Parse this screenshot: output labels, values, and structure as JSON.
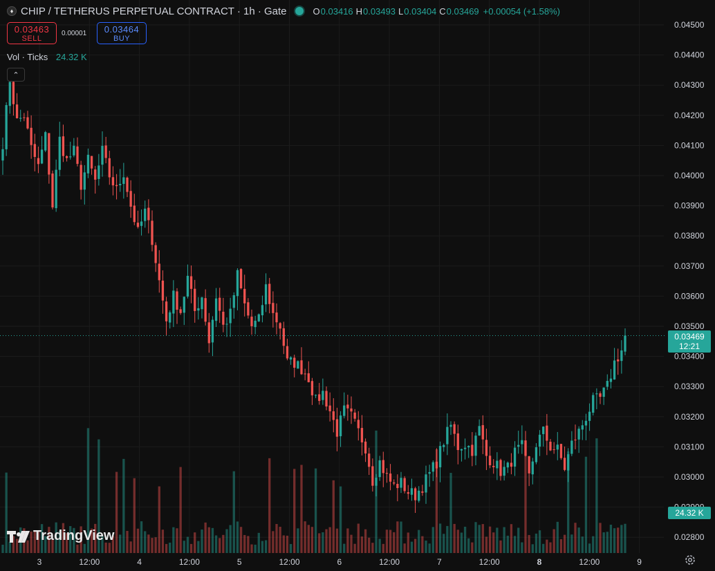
{
  "header": {
    "symbol_title": "CHIP / TETHERUS PERPETUAL CONTRACT · 1h · Gate",
    "icon": "chip-coin-icon",
    "status": "market-open-dot",
    "ohlc": {
      "o_label": "O",
      "o": "0.03416",
      "h_label": "H",
      "h": "0.03493",
      "l_label": "L",
      "l": "0.03404",
      "c_label": "C",
      "c": "0.03469",
      "change": "+0.00054 (+1.58%)"
    }
  },
  "trade": {
    "sell_price": "0.03463",
    "sell_label": "SELL",
    "spread": "0.00001",
    "buy_price": "0.03464",
    "buy_label": "BUY"
  },
  "volume_indicator": {
    "label": "Vol · Ticks",
    "value": "24.32 K"
  },
  "price_tags": {
    "last": "0.03469",
    "countdown": "12:21",
    "volume": "24.32 K"
  },
  "watermark": "TradingView",
  "colors": {
    "up": "#26a69a",
    "down": "#ef5350",
    "background": "#0f0f0f",
    "grid": "#1c1c1c"
  },
  "chart_data": {
    "type": "candlestick",
    "interval": "1h",
    "x_tick_labels": [
      "3",
      "12:00",
      "4",
      "12:00",
      "5",
      "12:00",
      "6",
      "12:00",
      "7",
      "12:00",
      "8",
      "12:00",
      "9"
    ],
    "y_tick_labels": [
      "0.04500",
      "0.04400",
      "0.04300",
      "0.04200",
      "0.04100",
      "0.04000",
      "0.03900",
      "0.03800",
      "0.03700",
      "0.03600",
      "0.03500",
      "0.03400",
      "0.03300",
      "0.03200",
      "0.03100",
      "0.03000",
      "0.02900",
      "0.02800"
    ],
    "ylim": [
      0.0276,
      0.0454
    ],
    "grid": true,
    "last_price": 0.03469,
    "close_path": [
      [
        0,
        0.0411
      ],
      [
        2,
        0.0432
      ],
      [
        4,
        0.0418
      ],
      [
        6,
        0.042
      ],
      [
        8,
        0.0409
      ],
      [
        10,
        0.0403
      ],
      [
        12,
        0.0413
      ],
      [
        14,
        0.039
      ],
      [
        16,
        0.0412
      ],
      [
        18,
        0.0405
      ],
      [
        20,
        0.0408
      ],
      [
        22,
        0.0397
      ],
      [
        24,
        0.0405
      ],
      [
        26,
        0.0398
      ],
      [
        28,
        0.0408
      ],
      [
        30,
        0.04
      ],
      [
        32,
        0.0395
      ],
      [
        34,
        0.0401
      ],
      [
        36,
        0.039
      ],
      [
        38,
        0.0381
      ],
      [
        40,
        0.0388
      ],
      [
        42,
        0.0379
      ],
      [
        44,
        0.0365
      ],
      [
        46,
        0.0352
      ],
      [
        48,
        0.036
      ],
      [
        50,
        0.0355
      ],
      [
        52,
        0.0366
      ],
      [
        54,
        0.0355
      ],
      [
        56,
        0.036
      ],
      [
        58,
        0.0345
      ],
      [
        60,
        0.036
      ],
      [
        62,
        0.035
      ],
      [
        64,
        0.0354
      ],
      [
        66,
        0.0367
      ],
      [
        68,
        0.0357
      ],
      [
        70,
        0.035
      ],
      [
        72,
        0.0352
      ],
      [
        74,
        0.0363
      ],
      [
        76,
        0.0354
      ],
      [
        78,
        0.035
      ],
      [
        80,
        0.0338
      ],
      [
        82,
        0.0338
      ],
      [
        84,
        0.0336
      ],
      [
        86,
        0.0333
      ],
      [
        88,
        0.0325
      ],
      [
        90,
        0.0328
      ],
      [
        92,
        0.0322
      ],
      [
        94,
        0.0315
      ],
      [
        96,
        0.0322
      ],
      [
        98,
        0.032
      ],
      [
        100,
        0.0315
      ],
      [
        102,
        0.031
      ],
      [
        104,
        0.0299
      ],
      [
        106,
        0.0305
      ],
      [
        108,
        0.03
      ],
      [
        110,
        0.0297
      ],
      [
        112,
        0.0298
      ],
      [
        114,
        0.0295
      ],
      [
        116,
        0.0294
      ],
      [
        118,
        0.0297
      ],
      [
        120,
        0.0301
      ],
      [
        122,
        0.0305
      ],
      [
        124,
        0.0312
      ],
      [
        126,
        0.0317
      ],
      [
        128,
        0.031
      ],
      [
        130,
        0.0311
      ],
      [
        132,
        0.0309
      ],
      [
        134,
        0.0316
      ],
      [
        136,
        0.0307
      ],
      [
        138,
        0.0305
      ],
      [
        140,
        0.0302
      ],
      [
        142,
        0.0303
      ],
      [
        144,
        0.0308
      ],
      [
        146,
        0.031
      ],
      [
        148,
        0.03
      ],
      [
        150,
        0.0311
      ],
      [
        152,
        0.0315
      ],
      [
        154,
        0.031
      ],
      [
        156,
        0.0309
      ],
      [
        158,
        0.0303
      ],
      [
        160,
        0.0311
      ],
      [
        162,
        0.0315
      ],
      [
        164,
        0.032
      ],
      [
        166,
        0.0325
      ],
      [
        168,
        0.0326
      ],
      [
        170,
        0.033
      ],
      [
        172,
        0.0338
      ],
      [
        174,
        0.0342
      ]
    ],
    "volume_hint": "volume bars share the lower pane; values not labeled except last (24.32 K)"
  }
}
